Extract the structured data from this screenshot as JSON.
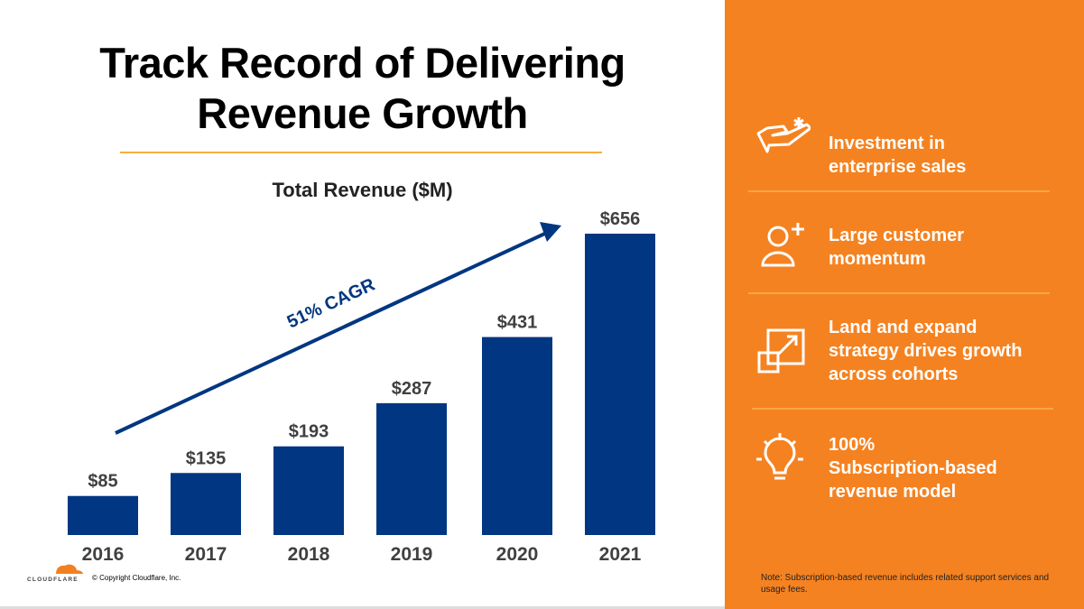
{
  "title_lines": [
    "Track Record of Delivering",
    "Revenue Growth"
  ],
  "chart_data": {
    "type": "bar",
    "title": "Total Revenue ($M)",
    "categories": [
      "2016",
      "2017",
      "2018",
      "2019",
      "2020",
      "2021"
    ],
    "values": [
      85,
      135,
      193,
      287,
      431,
      656
    ],
    "data_labels": [
      "$85",
      "$135",
      "$193",
      "$287",
      "$431",
      "$656"
    ],
    "annotation": "51% CAGR",
    "bar_color": "#003682",
    "grid": false,
    "ylim": [
      0,
      656
    ]
  },
  "panel": {
    "items": [
      {
        "icon": "hand-with-asterisk-icon",
        "text_lines": [
          "Investment in",
          "enterprise sales"
        ]
      },
      {
        "icon": "add-user-icon",
        "text_lines": [
          "Large customer",
          "momentum"
        ]
      },
      {
        "icon": "expand-squares-icon",
        "text_lines": [
          "Land and expand",
          "strategy drives growth",
          "across cohorts"
        ]
      },
      {
        "icon": "lightbulb-icon",
        "text_lines": [
          "100%",
          "Subscription-based",
          "revenue model"
        ]
      }
    ],
    "note": "Note: Subscription-based revenue includes related support services and usage fees.",
    "color": "#F58220"
  },
  "footer": {
    "logo": "CLOUDFLARE",
    "copyright": "© Copyright Cloudflare, Inc."
  }
}
